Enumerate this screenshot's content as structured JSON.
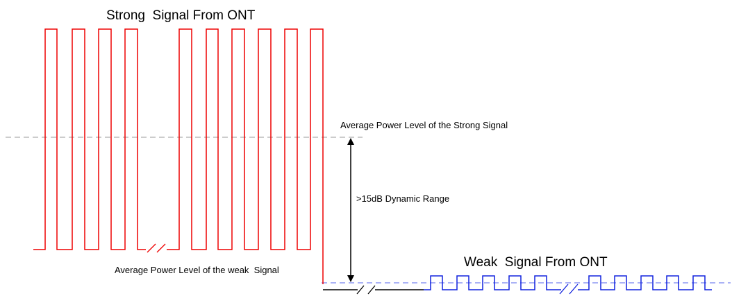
{
  "strong_title": "Strong  Signal From ONT",
  "strong_avg_label": "Average Power Level of the Strong Signal",
  "dynamic_range_label": ">15dB Dynamic Range",
  "weak_avg_label": "Average Power Level of the weak  Signal",
  "weak_title": "Weak  Signal From ONT"
}
